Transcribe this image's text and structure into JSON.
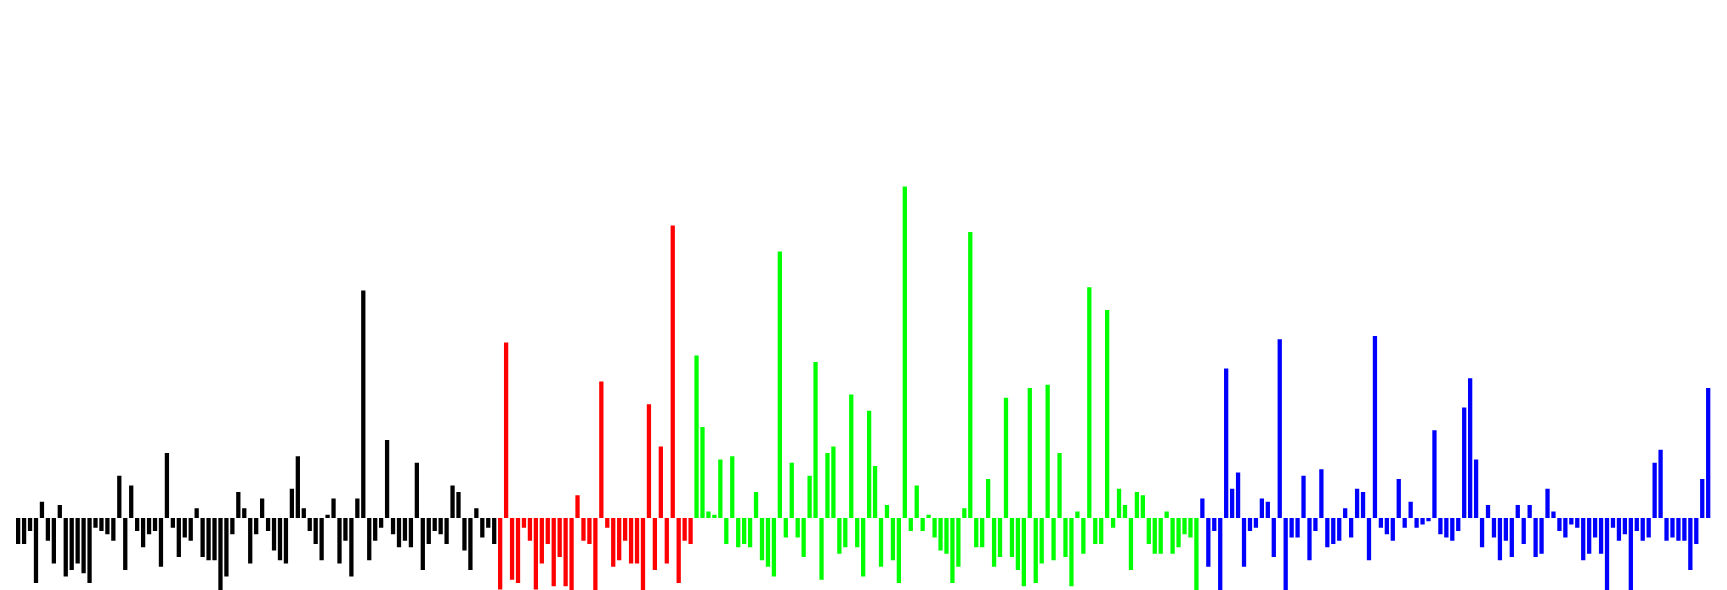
{
  "chart_data": {
    "type": "bar",
    "baseline": 0,
    "ylim": [
      -4,
      16
    ],
    "grid": false,
    "legend": "none",
    "series": [
      {
        "color": "#000000",
        "values": [
          -0.8,
          -0.8,
          -0.4,
          -2.0,
          0.5,
          -0.7,
          -1.4,
          0.4,
          -1.8,
          -1.6,
          -1.4,
          -1.7,
          -2.0,
          -0.3,
          -0.4,
          -0.5,
          -0.7,
          1.3,
          -1.6,
          1.0,
          -0.4,
          -0.9,
          -0.5,
          -0.4,
          -1.5,
          2.0,
          -0.3,
          -1.2,
          -0.6,
          -0.7,
          0.3,
          -1.2,
          -1.3,
          -1.3,
          -2.4,
          -1.8,
          -0.5,
          0.8,
          0.3,
          -1.4,
          -0.5,
          0.6,
          -0.4,
          -1.0,
          -1.3,
          -1.4,
          0.9,
          1.9,
          0.3,
          -0.4,
          -0.8,
          -1.3,
          0.1,
          0.6,
          -1.4,
          -0.7,
          -1.8,
          0.6,
          7.0,
          -1.3,
          -0.7,
          -0.3,
          2.4,
          -0.5,
          -0.9,
          -0.7,
          -0.9,
          1.7,
          -1.6,
          -0.8,
          -0.4,
          -0.5,
          -0.8,
          1.0,
          0.8,
          -1.0,
          -1.6,
          0.3,
          -0.6,
          -0.3,
          -0.8
        ]
      },
      {
        "color": "#ff0000",
        "values": [
          -2.2,
          5.4,
          -1.9,
          -2.0,
          -0.3,
          -0.7,
          -2.2,
          -1.4,
          -0.8,
          -2.1,
          -1.2,
          -2.1,
          -2.6,
          0.7,
          -0.7,
          -0.8,
          -2.5,
          4.2,
          -0.3,
          -1.5,
          -1.3,
          -0.7,
          -1.4,
          -1.4,
          -2.5,
          3.5,
          -1.6,
          2.2,
          -1.4,
          9.0,
          -2.0,
          -0.7,
          -0.8
        ]
      },
      {
        "color": "#00ff00",
        "values": [
          5.0,
          2.8,
          0.2,
          0.1,
          1.8,
          -0.8,
          1.9,
          -0.9,
          -0.8,
          -0.9,
          0.8,
          -1.3,
          -1.5,
          -1.8,
          8.2,
          -0.6,
          1.7,
          -0.6,
          -1.2,
          1.3,
          4.8,
          -1.9,
          2.0,
          2.2,
          -1.1,
          -0.9,
          3.8,
          -0.9,
          -1.8,
          3.3,
          1.6,
          -1.5,
          0.4,
          -1.3,
          -2.0,
          10.2,
          -0.4,
          1.0,
          -0.4,
          0.1,
          -0.6,
          -1.0,
          -1.1,
          -2.0,
          -1.5,
          0.3,
          8.8,
          -0.9,
          -0.9,
          1.2,
          -1.5,
          -1.2,
          3.7,
          -1.2,
          -1.6,
          -2.1,
          4.0,
          -2.0,
          -1.4,
          4.1,
          -1.3,
          2.0,
          -1.2,
          -2.1,
          0.2,
          -1.1,
          7.1,
          -0.8,
          -0.8,
          6.4,
          -0.3,
          0.9,
          0.4,
          -1.6,
          0.8,
          0.7,
          -0.8,
          -1.1,
          -1.1,
          0.2,
          -1.1,
          -0.9,
          -0.5,
          -0.6,
          -2.3
        ]
      },
      {
        "color": "#0000ff",
        "values": [
          0.6,
          -1.5,
          -0.4,
          -2.5,
          4.6,
          0.9,
          1.4,
          -1.5,
          -0.4,
          -0.3,
          0.6,
          0.5,
          -1.2,
          5.5,
          -2.6,
          -0.6,
          -0.6,
          1.3,
          -1.3,
          -0.4,
          1.5,
          -0.9,
          -0.8,
          -0.7,
          0.3,
          -0.6,
          0.9,
          0.8,
          -1.3,
          5.6,
          -0.3,
          -0.5,
          -0.7,
          1.2,
          -0.3,
          0.5,
          -0.3,
          -0.2,
          -0.1,
          2.7,
          -0.5,
          -0.6,
          -0.7,
          -0.4,
          3.4,
          4.3,
          1.8,
          -0.9,
          0.4,
          -0.6,
          -1.3,
          -0.7,
          -1.2,
          0.4,
          -0.8,
          0.4,
          -1.2,
          -1.1,
          0.9,
          0.2,
          -0.4,
          -0.6,
          -0.2,
          -0.3,
          -1.3,
          -1.1,
          -0.6,
          -1.1,
          -2.3,
          -0.3,
          -0.7,
          -0.5,
          -2.4,
          -0.4,
          -0.7,
          -0.6,
          1.7,
          2.1,
          -0.7,
          -0.6,
          -0.7,
          -0.7,
          -1.6,
          -0.8,
          1.2,
          4.0
        ]
      }
    ]
  }
}
